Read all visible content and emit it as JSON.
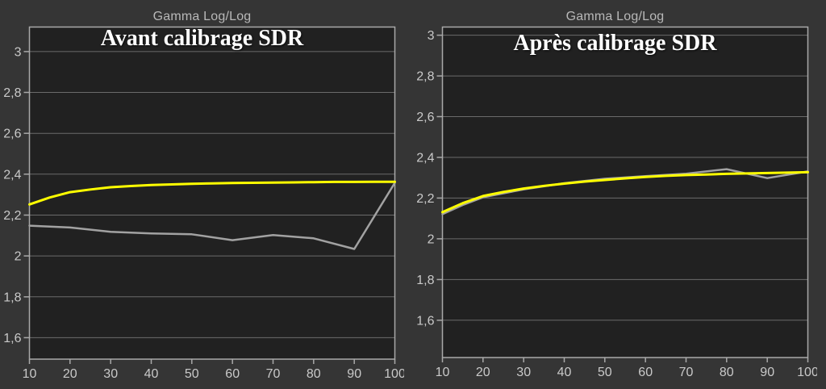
{
  "page": {
    "background": "#353535"
  },
  "colors": {
    "reference_yellow": "#ffff00",
    "measured_gray": "#a2a2a2",
    "grid": "#6b6b6b",
    "border": "#a9a9a9",
    "tick_label": "#c9c9c9",
    "header_text": "#b8b8b8",
    "title_text": "#ffffff",
    "plot_background": "#212121"
  },
  "chart_data": [
    {
      "type": "line",
      "header": "Gamma Log/Log",
      "title": "Avant calibrage SDR",
      "xlabel": "",
      "ylabel": "",
      "xlim": [
        10,
        100
      ],
      "ylim": [
        1.495,
        3.12
      ],
      "grid": "horizontal-only",
      "legend": "none",
      "x_ticks": {
        "values": [
          10,
          20,
          30,
          40,
          50,
          60,
          70,
          80,
          90,
          100
        ],
        "labels": [
          "10",
          "20",
          "30",
          "40",
          "50",
          "60",
          "70",
          "80",
          "90",
          "100"
        ]
      },
      "y_ticks": {
        "values": [
          1.6,
          1.8,
          2.0,
          2.2,
          2.4,
          2.6,
          2.8,
          3.0
        ],
        "labels": [
          "1,6",
          "1,8",
          "2",
          "2,2",
          "2,4",
          "2,6",
          "2,8",
          "3"
        ]
      },
      "series": [
        {
          "name": "measured",
          "color_key": "measured_gray",
          "x": [
            10,
            20,
            30,
            40,
            50,
            60,
            70,
            80,
            90,
            100
          ],
          "y": [
            2.148,
            2.139,
            2.118,
            2.11,
            2.106,
            2.077,
            2.102,
            2.086,
            2.034,
            2.358
          ]
        },
        {
          "name": "reference",
          "color_key": "reference_yellow",
          "x": [
            10,
            15,
            20,
            25,
            30,
            35,
            40,
            45,
            50,
            55,
            60,
            65,
            70,
            75,
            80,
            85,
            90,
            95,
            100
          ],
          "y": [
            2.252,
            2.286,
            2.312,
            2.325,
            2.336,
            2.342,
            2.347,
            2.35,
            2.353,
            2.355,
            2.357,
            2.358,
            2.359,
            2.36,
            2.361,
            2.362,
            2.362,
            2.363,
            2.363
          ]
        }
      ]
    },
    {
      "type": "line",
      "header": "Gamma Log/Log",
      "title": "Après calibrage SDR",
      "xlabel": "",
      "ylabel": "",
      "xlim": [
        10,
        100
      ],
      "ylim": [
        1.417,
        3.04
      ],
      "grid": "horizontal-only",
      "legend": "none",
      "x_ticks": {
        "values": [
          10,
          20,
          30,
          40,
          50,
          60,
          70,
          80,
          90,
          100
        ],
        "labels": [
          "10",
          "20",
          "30",
          "40",
          "50",
          "60",
          "70",
          "80",
          "90",
          "100"
        ]
      },
      "y_ticks": {
        "values": [
          1.6,
          1.8,
          2.0,
          2.2,
          2.4,
          2.6,
          2.8,
          3.0
        ],
        "labels": [
          "1,6",
          "1,8",
          "2",
          "2,2",
          "2,4",
          "2,6",
          "2,8",
          "3"
        ]
      },
      "series": [
        {
          "name": "measured",
          "color_key": "measured_gray",
          "x": [
            10,
            15,
            20,
            30,
            40,
            50,
            60,
            70,
            80,
            90,
            100
          ],
          "y": [
            2.121,
            2.166,
            2.204,
            2.243,
            2.273,
            2.295,
            2.308,
            2.32,
            2.342,
            2.298,
            2.331
          ]
        },
        {
          "name": "reference",
          "color_key": "reference_yellow",
          "x": [
            10,
            15,
            20,
            25,
            30,
            35,
            40,
            45,
            50,
            55,
            60,
            65,
            70,
            75,
            80,
            85,
            90,
            95,
            100
          ],
          "y": [
            2.131,
            2.175,
            2.21,
            2.23,
            2.247,
            2.26,
            2.271,
            2.281,
            2.289,
            2.297,
            2.304,
            2.309,
            2.313,
            2.316,
            2.319,
            2.321,
            2.323,
            2.325,
            2.327
          ]
        }
      ]
    }
  ]
}
